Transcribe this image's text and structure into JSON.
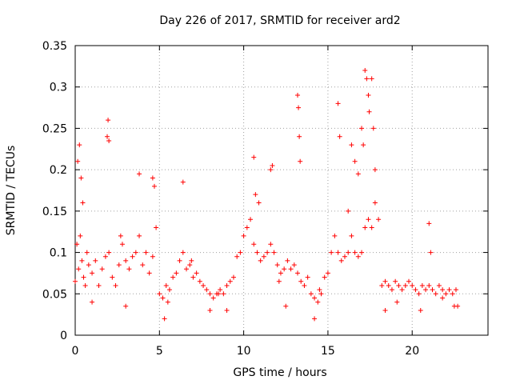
{
  "chart_data": {
    "type": "scatter",
    "title": "Day 226 of 2017, SRMTID for receiver ard2",
    "xlabel": "GPS time / hours",
    "ylabel": "SRMTID / TECUs",
    "xlim": [
      0,
      24.5
    ],
    "ylim": [
      0,
      0.35
    ],
    "xticks": [
      0,
      5,
      10,
      15,
      20
    ],
    "xtick_labels": [
      "0",
      "5",
      "10",
      "15",
      "20"
    ],
    "yticks": [
      0,
      0.05,
      0.1,
      0.15,
      0.2,
      0.25,
      0.3,
      0.35
    ],
    "ytick_labels": [
      "0",
      "0.05",
      "0.1",
      "0.15",
      "0.2",
      "0.25",
      "0.3",
      "0.35"
    ],
    "grid": true,
    "marker": "plus",
    "color": "#ff0000",
    "series": [
      {
        "name": "SRMTID",
        "x": [
          0.0,
          0.1,
          0.2,
          0.3,
          0.4,
          0.5,
          0.6,
          0.8,
          1.0,
          1.2,
          1.4,
          1.6,
          1.8,
          2.0,
          2.2,
          2.4,
          2.6,
          2.8,
          3.0,
          3.2,
          3.4,
          3.6,
          3.8,
          4.0,
          4.2,
          4.4,
          4.6,
          4.8,
          5.0,
          5.2,
          5.4,
          5.6,
          5.8,
          6.0,
          6.2,
          6.4,
          6.6,
          6.8,
          7.0,
          7.2,
          7.4,
          7.6,
          7.8,
          8.0,
          8.2,
          8.4,
          8.6,
          8.8,
          9.0,
          9.2,
          9.4,
          9.6,
          9.8,
          10.0,
          10.2,
          10.4,
          10.6,
          10.8,
          11.0,
          11.2,
          11.4,
          11.6,
          11.8,
          12.0,
          12.2,
          12.4,
          12.6,
          12.8,
          13.0,
          13.2,
          13.4,
          13.6,
          13.8,
          14.0,
          14.2,
          14.4,
          14.6,
          14.8,
          15.0,
          15.2,
          15.4,
          15.6,
          15.8,
          16.0,
          16.2,
          16.4,
          16.6,
          16.8,
          17.0,
          17.2,
          17.4,
          17.6,
          17.8,
          18.0,
          18.2,
          18.4,
          18.6,
          18.8,
          19.0,
          19.2,
          19.4,
          19.6,
          19.8,
          20.0,
          20.2,
          20.4,
          20.6,
          20.8,
          21.0,
          21.2,
          21.4,
          21.6,
          21.8,
          22.0,
          22.2,
          22.4,
          22.6,
          0.15,
          0.25,
          0.35,
          0.45,
          1.9,
          1.95,
          2.0,
          3.8,
          4.6,
          4.7,
          6.4,
          10.6,
          10.7,
          11.6,
          11.7,
          13.2,
          13.25,
          13.3,
          13.35,
          15.6,
          15.7,
          16.4,
          16.6,
          16.8,
          17.0,
          17.1,
          17.2,
          17.3,
          17.4,
          17.45,
          17.6,
          17.7,
          17.8,
          21.0,
          21.1,
          1.0,
          3.0,
          5.3,
          8.0,
          9.0,
          12.5,
          14.2,
          18.4,
          20.5,
          22.5,
          0.7,
          2.7,
          5.5,
          6.9,
          8.5,
          10.9,
          12.1,
          14.5,
          16.2,
          19.1,
          21.8,
          22.7
        ],
        "y": [
          0.065,
          0.11,
          0.08,
          0.12,
          0.09,
          0.07,
          0.06,
          0.085,
          0.075,
          0.09,
          0.06,
          0.08,
          0.095,
          0.1,
          0.07,
          0.06,
          0.085,
          0.11,
          0.09,
          0.08,
          0.095,
          0.1,
          0.12,
          0.085,
          0.1,
          0.075,
          0.095,
          0.13,
          0.05,
          0.045,
          0.06,
          0.055,
          0.07,
          0.075,
          0.09,
          0.1,
          0.08,
          0.085,
          0.07,
          0.075,
          0.065,
          0.06,
          0.055,
          0.05,
          0.045,
          0.05,
          0.055,
          0.05,
          0.06,
          0.065,
          0.07,
          0.095,
          0.1,
          0.12,
          0.13,
          0.14,
          0.11,
          0.1,
          0.09,
          0.095,
          0.1,
          0.11,
          0.1,
          0.085,
          0.075,
          0.08,
          0.09,
          0.08,
          0.085,
          0.075,
          0.065,
          0.06,
          0.07,
          0.05,
          0.045,
          0.04,
          0.05,
          0.07,
          0.075,
          0.1,
          0.12,
          0.1,
          0.09,
          0.095,
          0.1,
          0.12,
          0.1,
          0.095,
          0.1,
          0.13,
          0.14,
          0.13,
          0.16,
          0.14,
          0.06,
          0.065,
          0.06,
          0.055,
          0.065,
          0.06,
          0.055,
          0.06,
          0.065,
          0.06,
          0.055,
          0.05,
          0.06,
          0.055,
          0.06,
          0.055,
          0.05,
          0.06,
          0.055,
          0.05,
          0.055,
          0.05,
          0.055,
          0.21,
          0.23,
          0.19,
          0.16,
          0.24,
          0.26,
          0.235,
          0.195,
          0.19,
          0.18,
          0.185,
          0.215,
          0.17,
          0.2,
          0.205,
          0.29,
          0.275,
          0.24,
          0.21,
          0.28,
          0.24,
          0.23,
          0.21,
          0.195,
          0.25,
          0.23,
          0.32,
          0.31,
          0.29,
          0.27,
          0.31,
          0.25,
          0.2,
          0.135,
          0.1,
          0.04,
          0.035,
          0.02,
          0.03,
          0.03,
          0.035,
          0.02,
          0.03,
          0.03,
          0.035,
          0.1,
          0.12,
          0.04,
          0.09,
          0.05,
          0.16,
          0.065,
          0.055,
          0.15,
          0.04,
          0.045,
          0.035
        ]
      }
    ]
  }
}
